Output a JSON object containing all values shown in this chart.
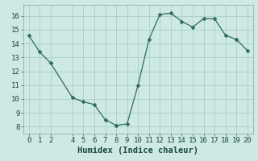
{
  "x": [
    0,
    1,
    2,
    4,
    5,
    6,
    7,
    8,
    9,
    10,
    11,
    12,
    13,
    14,
    15,
    16,
    17,
    18,
    19,
    20
  ],
  "y": [
    14.6,
    13.4,
    12.6,
    10.1,
    9.8,
    9.6,
    8.5,
    8.1,
    8.2,
    11.0,
    14.3,
    16.1,
    16.2,
    15.6,
    15.2,
    15.8,
    15.8,
    14.6,
    14.3,
    13.5
  ],
  "xlabel": "Humidex (Indice chaleur)",
  "ylim": [
    7.5,
    16.8
  ],
  "xlim": [
    -0.5,
    20.5
  ],
  "yticks": [
    8,
    9,
    10,
    11,
    12,
    13,
    14,
    15,
    16
  ],
  "xticks": [
    0,
    1,
    2,
    4,
    5,
    6,
    7,
    8,
    9,
    10,
    11,
    12,
    13,
    14,
    15,
    16,
    17,
    18,
    19,
    20
  ],
  "line_color": "#2e6b5e",
  "marker": "D",
  "marker_size": 2.5,
  "bg_color": "#cde8e5",
  "grid_color": "#a8cfc9",
  "tick_fontsize": 6.5,
  "xlabel_fontsize": 7.5
}
